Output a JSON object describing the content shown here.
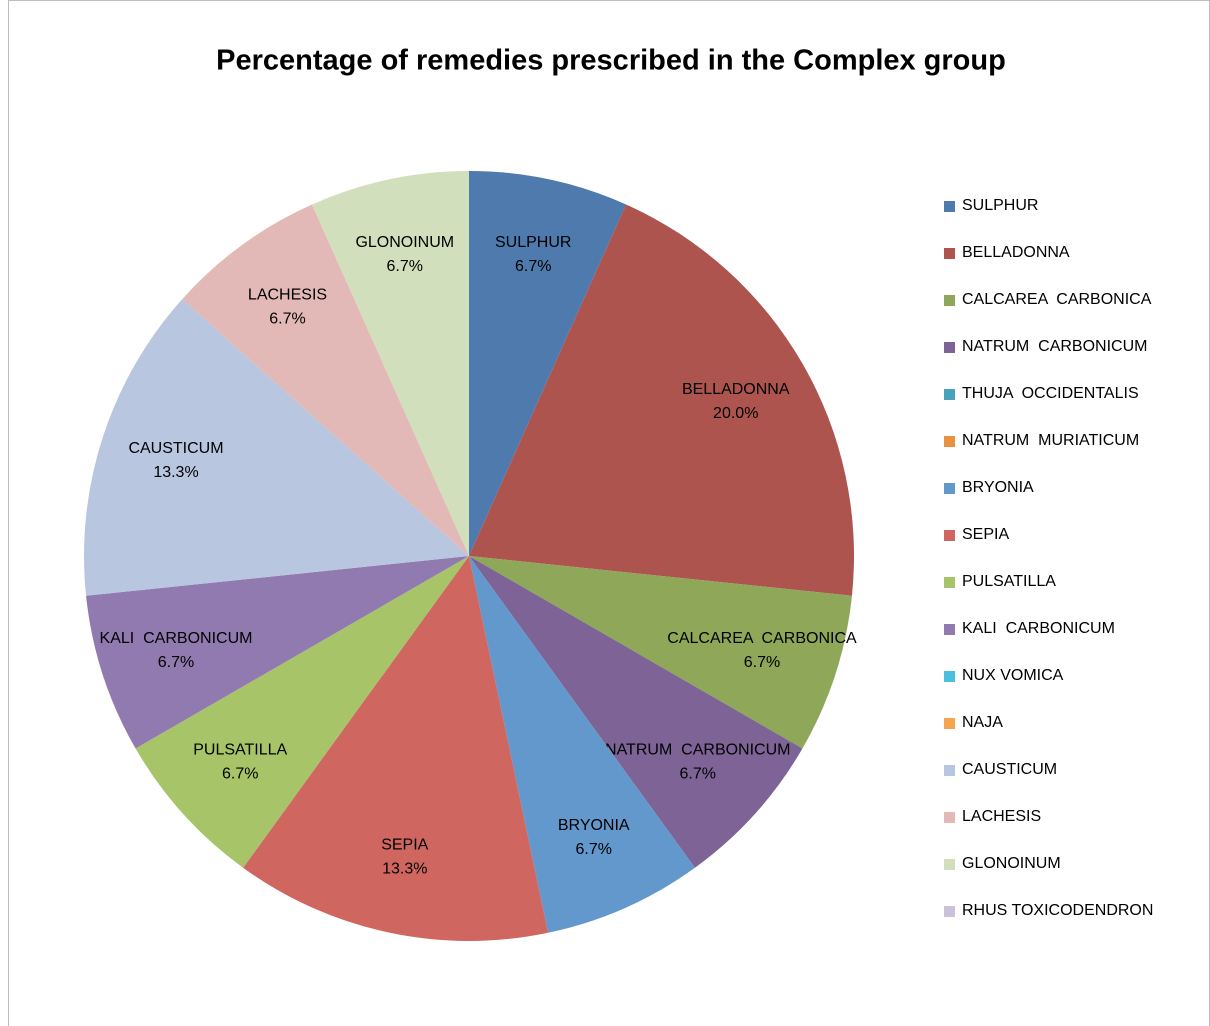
{
  "chart_data": {
    "type": "pie",
    "title": "Percentage of remedies prescribed in the Complex group",
    "categories": [
      "SULPHUR",
      "BELLADONNA",
      "CALCAREA  CARBONICA",
      "NATRUM  CARBONICUM",
      "THUJA  OCCIDENTALIS",
      "NATRUM  MURIATICUM",
      "BRYONIA",
      "SEPIA",
      "PULSATILLA",
      "KALI  CARBONICUM",
      "NUX VOMICA",
      "NAJA",
      "CAUSTICUM",
      "LACHESIS",
      "GLONOINUM",
      "RHUS TOXICODENDRON"
    ],
    "values": [
      6.7,
      20.0,
      6.7,
      6.7,
      0,
      0,
      6.7,
      13.3,
      6.7,
      6.7,
      0,
      0,
      13.3,
      6.7,
      6.7,
      0
    ],
    "value_labels": [
      "6.7%",
      "20.0%",
      "6.7%",
      "6.7%",
      null,
      null,
      "6.7%",
      "13.3%",
      "6.7%",
      "6.7%",
      null,
      null,
      "13.3%",
      "6.7%",
      "6.7%",
      null
    ],
    "colors": [
      "#4f7aae",
      "#ad544e",
      "#8ea758",
      "#7d6396",
      "#48a2bc",
      "#e8913f",
      "#6398cc",
      "#cf6660",
      "#a8c468",
      "#917ab0",
      "#4bc0dc",
      "#f6a44f",
      "#b8c6e0",
      "#e2b9b7",
      "#d2dfbd",
      "#cbc1d9"
    ],
    "legend": "right"
  }
}
